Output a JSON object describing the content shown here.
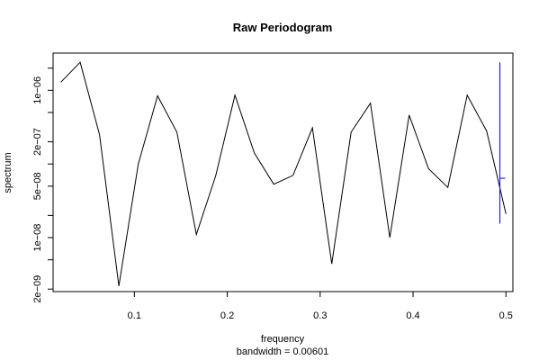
{
  "chart_data": {
    "type": "line",
    "title": "Raw Periodogram",
    "xlabel": "frequency",
    "sublabel": "bandwidth = 0.00601",
    "ylabel": "spectrum",
    "y_scale": "log",
    "x_ticks": [
      {
        "value": 0.1,
        "label": "0.1"
      },
      {
        "value": 0.2,
        "label": "0.2"
      },
      {
        "value": 0.3,
        "label": "0.3"
      },
      {
        "value": 0.4,
        "label": "0.4"
      },
      {
        "value": 0.5,
        "label": "0.5"
      }
    ],
    "y_ticks": [
      {
        "value": 2e-09,
        "label": "2e−09"
      },
      {
        "value": 5e-09,
        "label": ""
      },
      {
        "value": 1e-08,
        "label": "1e−08"
      },
      {
        "value": 2e-08,
        "label": ""
      },
      {
        "value": 5e-08,
        "label": "5e−08"
      },
      {
        "value": 1e-07,
        "label": ""
      },
      {
        "value": 2e-07,
        "label": "2e−07"
      },
      {
        "value": 5e-07,
        "label": ""
      },
      {
        "value": 1e-06,
        "label": "1e−06"
      },
      {
        "value": 2e-06,
        "label": ""
      }
    ],
    "xlim": [
      0.0125,
      0.5075
    ],
    "ylim": [
      1.85e-09,
      3.2e-06
    ],
    "series": [
      {
        "color": "#000000",
        "x": [
          0.0208,
          0.0417,
          0.0625,
          0.0833,
          0.1042,
          0.125,
          0.1458,
          0.1667,
          0.1875,
          0.2083,
          0.2292,
          0.25,
          0.2708,
          0.2917,
          0.3125,
          0.3333,
          0.3542,
          0.375,
          0.3958,
          0.4167,
          0.4375,
          0.4583,
          0.4792,
          0.5
        ],
        "y": [
          1.29e-06,
          2.4e-06,
          2.5e-07,
          2.2e-09,
          1e-07,
          8.4e-07,
          2.7e-07,
          1.1e-08,
          6.9e-08,
          8.6e-07,
          1.4e-07,
          5.3e-08,
          7e-08,
          3.1e-07,
          4.4e-09,
          2.7e-07,
          6.7e-07,
          1e-08,
          4.6e-07,
          8.6e-08,
          4.8e-08,
          8.6e-07,
          2.8e-07,
          2.1e-08
        ]
      }
    ],
    "ci_bar": {
      "color": "#0000ff",
      "x": 0.4935,
      "y_low": 1.55e-08,
      "y_high": 2.4e-06,
      "y_center": 6.4e-08
    }
  }
}
